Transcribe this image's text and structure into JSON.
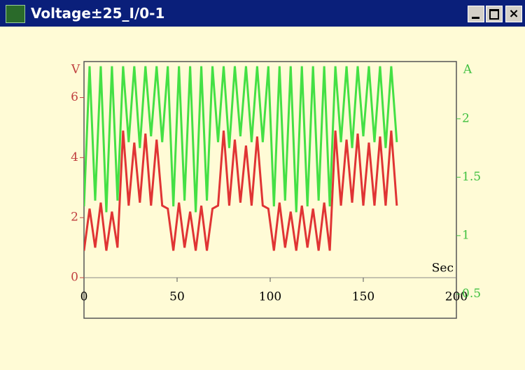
{
  "window": {
    "title": "Voltage±25_I/0-1"
  },
  "chart_data": {
    "type": "line",
    "xlabel": "Sec",
    "ylabel": "V",
    "y2label": "A",
    "x": [
      0,
      3,
      6,
      9,
      12,
      15,
      18,
      21,
      24,
      27,
      30,
      33,
      36,
      39,
      42,
      45,
      48,
      51,
      54,
      57,
      60,
      63,
      66,
      69,
      72,
      75,
      78,
      81,
      84,
      87,
      90,
      93,
      96,
      99,
      102,
      105,
      108,
      111,
      114,
      117,
      120,
      123,
      126,
      129,
      132,
      135,
      138,
      141,
      144,
      147,
      150,
      153,
      156,
      159,
      162,
      165,
      168
    ],
    "xlim": [
      0,
      200
    ],
    "xticks": [
      0,
      50,
      100,
      150,
      200
    ],
    "ylim": [
      0,
      7.2
    ],
    "yticks": [
      0,
      2,
      4,
      6
    ],
    "y2lim": [
      0.64,
      2.49
    ],
    "y2ticks": [
      0.5,
      1,
      1.5,
      2
    ],
    "series": [
      {
        "name": "A",
        "color": "#44e044",
        "axis": "y2",
        "values": [
          1.25,
          2.45,
          1.3,
          2.45,
          1.2,
          2.45,
          1.3,
          2.45,
          1.8,
          2.45,
          1.75,
          2.45,
          1.85,
          2.45,
          1.8,
          2.45,
          1.25,
          2.45,
          1.3,
          2.45,
          1.2,
          2.45,
          1.3,
          2.45,
          1.8,
          2.45,
          1.75,
          2.45,
          1.85,
          2.45,
          1.8,
          2.45,
          1.8,
          2.45,
          1.25,
          2.45,
          1.3,
          2.45,
          1.2,
          2.45,
          1.25,
          2.45,
          1.3,
          2.45,
          1.25,
          2.45,
          1.8,
          2.45,
          1.75,
          2.45,
          1.85,
          2.45,
          1.8,
          2.45,
          1.75,
          2.45,
          1.8
        ]
      },
      {
        "name": "V",
        "color": "#e03434",
        "values": [
          0.9,
          2.3,
          1.0,
          2.5,
          0.9,
          2.2,
          1.0,
          4.9,
          2.4,
          4.5,
          2.5,
          4.8,
          2.4,
          4.6,
          2.4,
          2.3,
          0.9,
          2.5,
          1.0,
          2.2,
          0.9,
          2.4,
          0.9,
          2.3,
          2.4,
          4.9,
          2.4,
          4.6,
          2.5,
          4.4,
          2.4,
          4.7,
          2.4,
          2.3,
          0.9,
          2.5,
          1.0,
          2.2,
          0.9,
          2.4,
          1.0,
          2.3,
          0.9,
          2.5,
          0.9,
          4.9,
          2.4,
          4.6,
          2.5,
          4.8,
          2.4,
          4.5,
          2.4,
          4.7,
          2.4,
          4.9,
          2.4
        ]
      }
    ]
  }
}
